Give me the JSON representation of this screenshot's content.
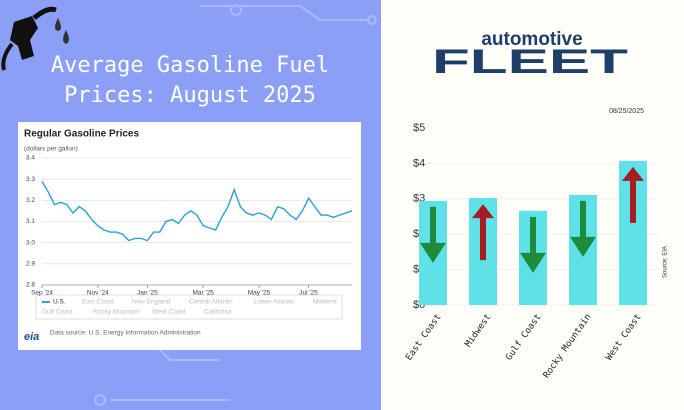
{
  "header": {
    "title_lines": [
      "Average Gasoline Fuel",
      "Prices: August 2025"
    ],
    "brand_top": "automotive",
    "brand_bottom": "FLEET"
  },
  "chart_data": [
    {
      "type": "line",
      "title": "Regular Gasoline Prices",
      "subtitle": "(dollars per gallon)",
      "categories": [
        "Sep '24",
        null,
        null,
        null,
        null,
        null,
        null,
        null,
        null,
        "Nov '24",
        null,
        null,
        null,
        null,
        null,
        null,
        null,
        "Jan '25",
        null,
        null,
        null,
        null,
        null,
        null,
        null,
        null,
        "Mar '25",
        null,
        null,
        null,
        null,
        null,
        null,
        null,
        null,
        "May '25",
        null,
        null,
        null,
        null,
        null,
        null,
        null,
        "Jul '25",
        null,
        null,
        null,
        null,
        null,
        null,
        null
      ],
      "series": [
        {
          "name": "U.S.",
          "color": "#2a9fd0",
          "values": [
            3.29,
            3.24,
            3.18,
            3.19,
            3.18,
            3.14,
            3.17,
            3.15,
            3.11,
            3.08,
            3.06,
            3.05,
            3.05,
            3.04,
            3.01,
            3.02,
            3.02,
            3.01,
            3.05,
            3.05,
            3.1,
            3.11,
            3.09,
            3.13,
            3.15,
            3.13,
            3.08,
            3.07,
            3.06,
            3.12,
            3.17,
            3.25,
            3.17,
            3.14,
            3.13,
            3.14,
            3.13,
            3.11,
            3.17,
            3.16,
            3.13,
            3.11,
            3.15,
            3.21,
            3.17,
            3.13,
            3.13,
            3.12,
            3.13,
            3.14,
            3.15
          ]
        }
      ],
      "legend_disabled": [
        "East Coast",
        "New England",
        "Central Atlantic",
        "Lower Atlantic",
        "Midwest",
        "Gulf Coast",
        "Rocky Mountain",
        "West Coast",
        "California"
      ],
      "ylim": [
        2.8,
        3.4
      ],
      "yticks": [
        2.8,
        2.9,
        {
          "value": 3,
          "label": "3.0"
        },
        3.1,
        3.2,
        3.3,
        3.4
      ],
      "grid": true,
      "source": "Data source: U.S. Energy Information Administration",
      "source_logo": "eia"
    },
    {
      "type": "bar",
      "date": "08/25/2025",
      "source": "Source: EIA",
      "categories": [
        "East Coast",
        "Midwest",
        "Gulf Coast",
        "Rocky Mountain",
        "West Coast"
      ],
      "values": [
        2.94,
        3.02,
        2.66,
        3.11,
        4.07
      ],
      "direction": [
        "down",
        "up",
        "down",
        "down",
        "up"
      ],
      "color": "#5fe1e8",
      "up_color": "#a61e22",
      "down_color": "#1e8a3c",
      "ylim": [
        0,
        5
      ],
      "yticks": [
        {
          "value": 0,
          "label": "$0"
        },
        {
          "value": 1,
          "label": "$1"
        },
        {
          "value": 2,
          "label": "$2"
        },
        {
          "value": 3,
          "label": "$3"
        },
        {
          "value": 4,
          "label": "$4"
        },
        {
          "value": 5,
          "label": "$5"
        }
      ],
      "grid": true
    }
  ]
}
